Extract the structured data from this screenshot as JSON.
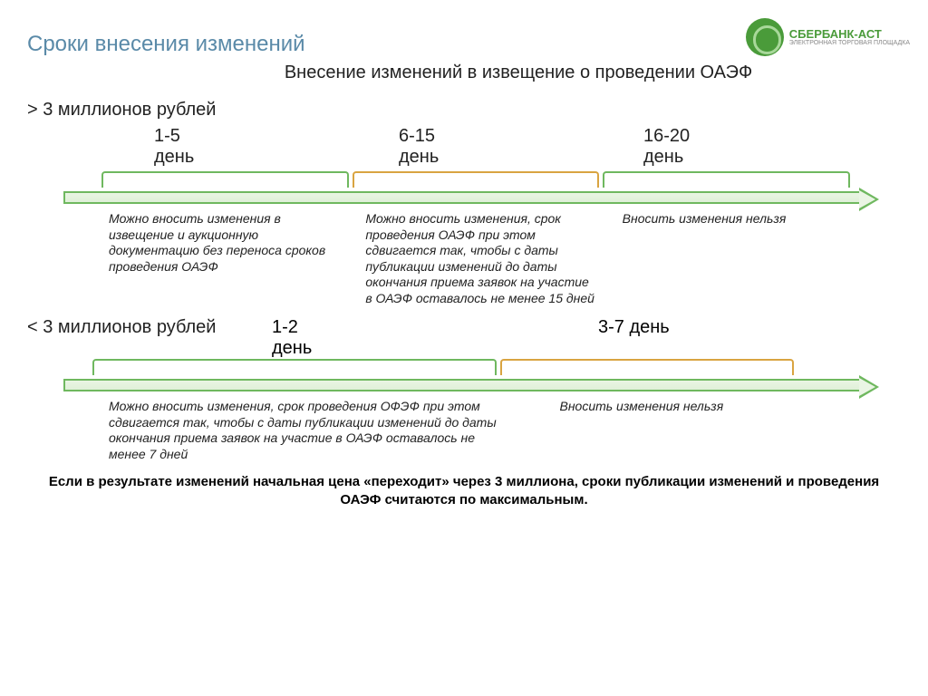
{
  "logo": {
    "main": "СБЕРБАНК-АСТ",
    "sub": "ЭЛЕКТРОННАЯ ТОРГОВАЯ ПЛОЩАДКА"
  },
  "title": "Сроки внесения изменений",
  "subtitle": "Внесение изменений в извещение о проведении ОАЭФ",
  "timeline1": {
    "label": "> 3 миллионов рублей",
    "periods": [
      {
        "label": "1-5\nдень",
        "color": "#6fb85f",
        "desc": "Можно вносить изменения в извещение и аукционную документацию без переноса сроков проведения ОАЭФ"
      },
      {
        "label": "6-15\nдень",
        "color": "#d9a441",
        "desc": "Можно вносить изменения, срок проведения ОАЭФ при этом сдвигается так, чтобы с даты публикации изменений до даты окончания приема заявок на участие в ОАЭФ оставалось не менее 15 дней"
      },
      {
        "label": "16-20\nдень",
        "color": "#6fb85f",
        "desc": "Вносить изменения нельзя"
      }
    ]
  },
  "timeline2": {
    "label": "< 3 миллионов рублей",
    "periods": [
      {
        "label": "1-2\nдень",
        "color": "#6fb85f",
        "desc": "Можно вносить изменения, срок проведения ОФЭФ при этом сдвигается так, чтобы с даты публикации изменений до даты окончания приема заявок на участие в ОАЭФ оставалось не менее 7 дней"
      },
      {
        "label": "3-7 день",
        "color": "#d9a441",
        "desc": "Вносить изменения нельзя"
      }
    ]
  },
  "footer": "Если в результате изменений начальная цена «переходит» через 3 миллиона, сроки публикации изменений и проведения ОАЭФ считаются по максимальным.",
  "colors": {
    "title": "#5a8aa8",
    "arrow_border": "#6fb85f",
    "arrow_fill": "#eaf5e4",
    "text": "#222222",
    "bg": "#ffffff"
  }
}
